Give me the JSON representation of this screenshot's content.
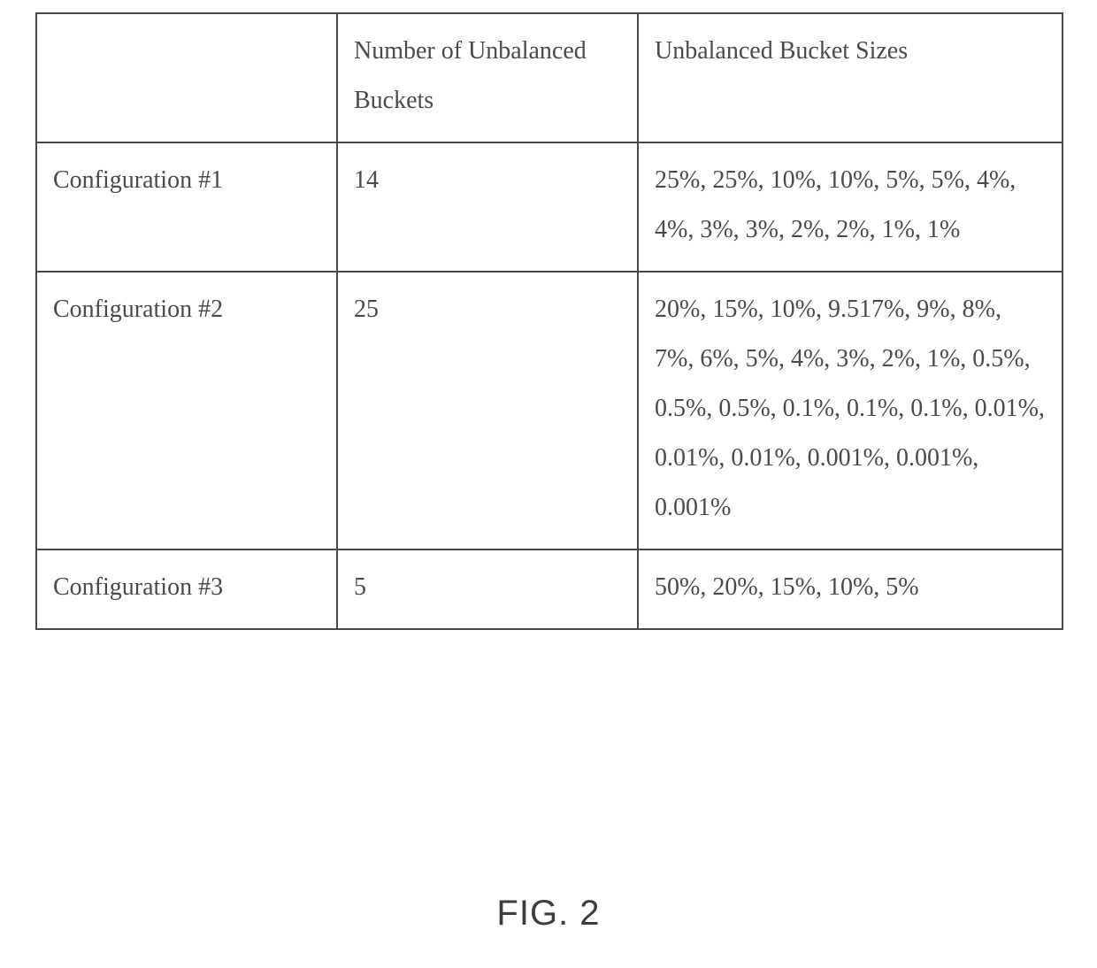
{
  "table": {
    "columns": [
      "",
      "Number of Unbalanced Buckets",
      "Unbalanced Bucket Sizes"
    ],
    "rows": [
      {
        "label": "Configuration #1",
        "count": "14",
        "sizes": "25%, 25%, 10%, 10%, 5%, 5%, 4%, 4%, 3%, 3%, 2%, 2%, 1%, 1%"
      },
      {
        "label": "Configuration #2",
        "count": "25",
        "sizes": "20%, 15%, 10%, 9.517%, 9%, 8%, 7%, 6%, 5%, 4%, 3%, 2%, 1%, 0.5%, 0.5%, 0.5%, 0.1%, 0.1%, 0.1%, 0.01%, 0.01%, 0.01%, 0.001%, 0.001%, 0.001%"
      },
      {
        "label": "Configuration #3",
        "count": "5",
        "sizes": "50%, 20%, 15%, 10%, 5%"
      }
    ],
    "border_color": "#4a4a4a",
    "text_color": "#4a4a4a",
    "font_family": "Times New Roman",
    "cell_fontsize": 28,
    "line_height": 2.0
  },
  "figure_label": "FIG. 2",
  "figure_label_font": "Arial",
  "figure_label_fontsize": 40,
  "background_color": "#ffffff"
}
